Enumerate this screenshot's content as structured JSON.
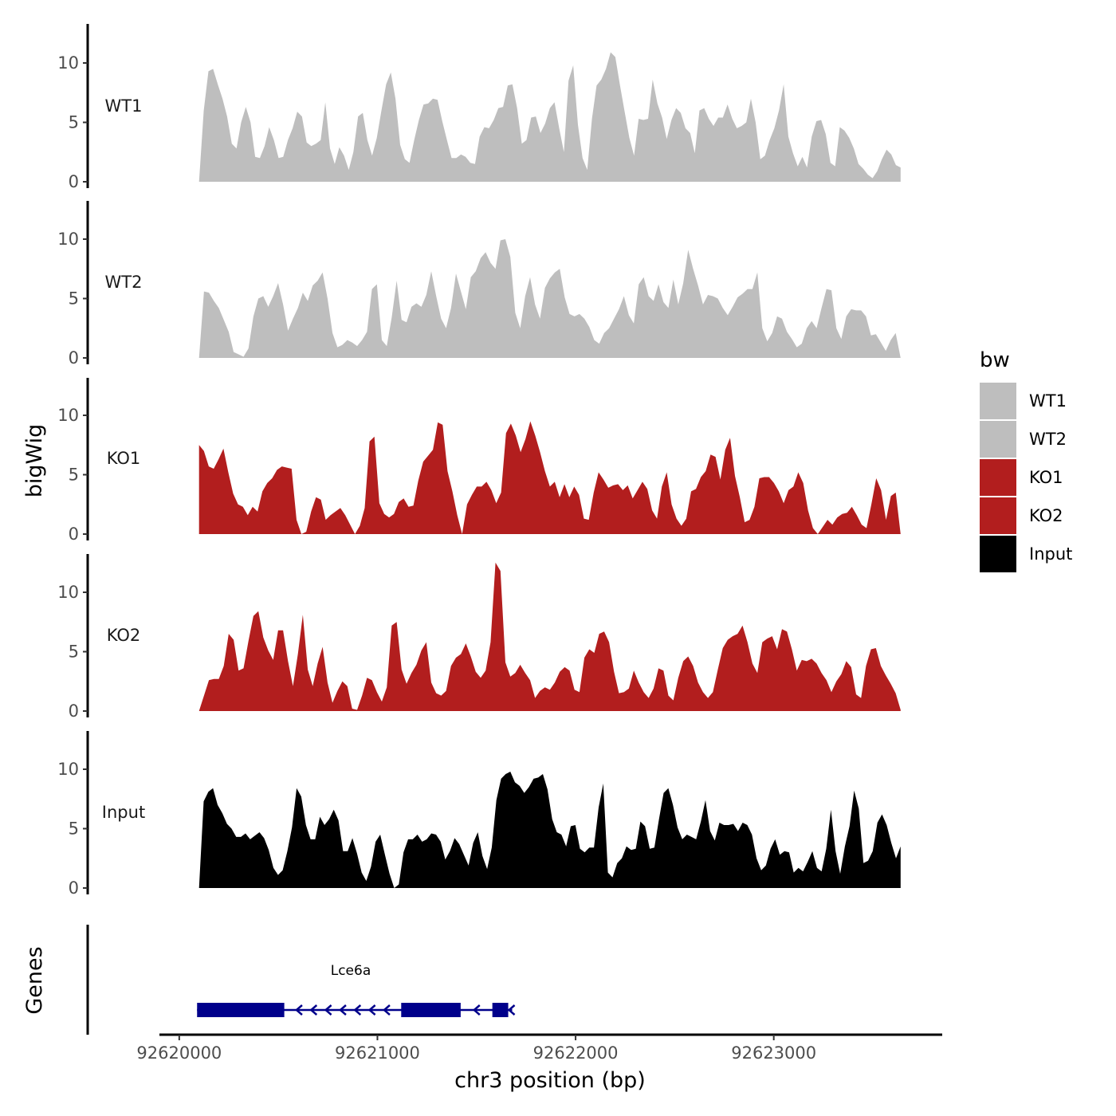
{
  "chart_data": {
    "type": "area",
    "ylabel": "bigWig",
    "xlabel": "chr3 position (bp)",
    "xlim": [
      92619900,
      92623850
    ],
    "ylim": [
      0,
      13
    ],
    "y_ticks": [
      "0",
      "5",
      "10"
    ],
    "x_ticks": [
      {
        "value": 92620000,
        "label": "92620000"
      },
      {
        "value": 92621000,
        "label": "92621000"
      },
      {
        "value": 92622000,
        "label": "92622000"
      },
      {
        "value": 92623000,
        "label": "92623000"
      }
    ],
    "colors": {
      "WT": "#bebebe",
      "KO": "#b21e1e",
      "Input": "#000000",
      "gene": "#00008b"
    },
    "series": [
      {
        "name": "WT1",
        "color": "#bebebe",
        "x_start": 92620100,
        "x_end": 92623640,
        "values": [
          0,
          6,
          9.3,
          9.5,
          8.2,
          7,
          5.5,
          3.2,
          2.8,
          5,
          6.3,
          5,
          2.1,
          2,
          3,
          4.6,
          3.5,
          2,
          2.1,
          3.5,
          4.5,
          5.9,
          5.5,
          3.3,
          3,
          3.2,
          3.5,
          6.7,
          2.8,
          1.5,
          2.9,
          2.2,
          1,
          2.5,
          5.5,
          5.8,
          3.5,
          2.2,
          3.7,
          6,
          8.2,
          9.2,
          7,
          3.1,
          1.9,
          1.6,
          3.5,
          5.2,
          6.5,
          6.6,
          7,
          6.9,
          5.1,
          3.5,
          2,
          2,
          2.3,
          2.1,
          1.6,
          1.5,
          3.8,
          4.6,
          4.5,
          5.2,
          6.2,
          6.3,
          8.1,
          8.2,
          6.2,
          3.2,
          3.5,
          5.4,
          5.5,
          4.1,
          4.9,
          6.2,
          6.7,
          4.5,
          2.5,
          8.5,
          9.8,
          4.8,
          2,
          1,
          5.3,
          8.1,
          8.6,
          9.5,
          10.9,
          10.5,
          8.1,
          5.9,
          3.7,
          2.2,
          5.3,
          5.2,
          5.3,
          8.6,
          6.6,
          5.4,
          3.6,
          5.2,
          6.2,
          5.8,
          4.5,
          4.1,
          2.4,
          6,
          6.2,
          5.3,
          4.7,
          5.4,
          5.4,
          6.5,
          5.3,
          4.5,
          4.7,
          5,
          7,
          5,
          1.9,
          2.2,
          3.5,
          4.5,
          6,
          8.2,
          3.8,
          2.4,
          1.3,
          2.1,
          1.2,
          3.8,
          5.1,
          5.2,
          4,
          1.6,
          1.3,
          4.6,
          4.3,
          3.7,
          2.8,
          1.5,
          1.1,
          0.6,
          0.3,
          0.9,
          1.9,
          2.7,
          2.3,
          1.4,
          1.2
        ]
      },
      {
        "name": "WT2",
        "color": "#bebebe",
        "x_start": 92620100,
        "x_end": 92623640,
        "values": [
          0,
          5.6,
          5.5,
          4.8,
          4.2,
          3.2,
          2.2,
          0.5,
          0.3,
          0.1,
          0.8,
          3.5,
          5,
          5.2,
          4.3,
          5.2,
          6.3,
          4.5,
          2.3,
          3.3,
          4.2,
          5.5,
          4.8,
          6.1,
          6.5,
          7.2,
          5,
          2.1,
          0.9,
          1.1,
          1.5,
          1.3,
          1,
          1.5,
          2.2,
          5.8,
          6.2,
          1.5,
          1,
          3.4,
          6.5,
          3.2,
          3,
          4.3,
          4.6,
          4.3,
          5.3,
          7.3,
          5.2,
          3.3,
          2.5,
          4.2,
          7.1,
          5.6,
          4.1,
          6.8,
          7.3,
          8.4,
          8.9,
          8,
          7.5,
          9.9,
          10,
          8.5,
          3.8,
          2.5,
          5.2,
          6.8,
          4.5,
          3.3,
          5.9,
          6.7,
          7.2,
          7.5,
          5.1,
          3.7,
          3.5,
          3.7,
          3.3,
          2.6,
          1.5,
          1.2,
          2.1,
          2.5,
          3.3,
          4.1,
          5.2,
          3.6,
          2.9,
          6.2,
          6.8,
          5.2,
          4.8,
          6.2,
          4.7,
          4.2,
          6.6,
          4.5,
          6.3,
          9.1,
          7.5,
          6.1,
          4.5,
          5.3,
          5.2,
          5,
          4.2,
          3.6,
          4.3,
          5.1,
          5.4,
          5.8,
          5.8,
          7.2,
          2.5,
          1.4,
          2.1,
          3.5,
          3.3,
          2.2,
          1.6,
          0.9,
          1.2,
          2.5,
          3.1,
          2.5,
          4.2,
          5.8,
          5.7,
          2.5,
          1.6,
          3.5,
          4.1,
          4,
          4,
          3.5,
          1.9,
          2,
          1.3,
          0.6,
          1.5,
          2.1,
          0
        ]
      },
      {
        "name": "KO1",
        "color": "#b21e1e",
        "x_start": 92620100,
        "x_end": 92623640,
        "values": [
          7.5,
          7,
          5.7,
          5.5,
          6.3,
          7.2,
          5.2,
          3.4,
          2.5,
          2.3,
          1.6,
          2.3,
          1.9,
          3.6,
          4.3,
          4.7,
          5.4,
          5.7,
          5.6,
          5.5,
          1.2,
          0,
          0.2,
          1.9,
          3.1,
          2.9,
          1.2,
          1.6,
          1.9,
          2.2,
          1.6,
          0.8,
          0,
          0.7,
          2.2,
          7.8,
          8.2,
          2.6,
          1.7,
          1.4,
          1.7,
          2.7,
          3,
          2.3,
          2.4,
          4.5,
          6.1,
          6.6,
          7.1,
          9.4,
          9.2,
          5.3,
          3.6,
          1.6,
          0,
          2.5,
          3.3,
          4,
          4,
          4.4,
          3.7,
          2.6,
          3.5,
          8.5,
          9.3,
          8.3,
          6.9,
          8,
          9.5,
          8.3,
          6.9,
          5.3,
          4,
          4.4,
          3.1,
          4.2,
          3.1,
          4,
          3.3,
          1.3,
          1.2,
          3.5,
          5.2,
          4.6,
          3.9,
          4.1,
          4.2,
          3.7,
          4.1,
          3,
          3.7,
          4.4,
          3.8,
          2,
          1.3,
          4,
          5.2,
          2.5,
          1.3,
          0.7,
          1.3,
          3.6,
          3.8,
          4.8,
          5.3,
          6.7,
          6.5,
          4.6,
          7.1,
          8.1,
          4.9,
          3.1,
          1,
          1.2,
          2.3,
          4.7,
          4.8,
          4.8,
          4.3,
          3.6,
          2.6,
          3.7,
          4,
          5.2,
          4.3,
          2,
          0.5,
          0,
          0.6,
          1.2,
          0.8,
          1.4,
          1.7,
          1.8,
          2.3,
          1.6,
          0.8,
          0.5,
          2.5,
          4.7,
          3.7,
          1.2,
          3.2,
          3.5,
          0
        ]
      },
      {
        "name": "KO2",
        "color": "#b21e1e",
        "x_start": 92620100,
        "x_end": 92623640,
        "values": [
          0,
          1.3,
          2.6,
          2.7,
          2.7,
          3.8,
          6.5,
          6,
          3.4,
          3.6,
          5.9,
          8,
          8.4,
          6.2,
          5.1,
          4.3,
          6.8,
          6.8,
          4.2,
          2.1,
          4.8,
          8.1,
          3.5,
          2.1,
          4,
          5.4,
          2.4,
          0.7,
          1.7,
          2.5,
          2.1,
          0.2,
          0.1,
          1.3,
          2.8,
          2.6,
          1.6,
          0.8,
          2,
          7.2,
          7.5,
          3.5,
          2.3,
          3.2,
          3.9,
          5.1,
          5.8,
          2.4,
          1.5,
          1.3,
          1.7,
          3.8,
          4.5,
          4.8,
          5.7,
          4.6,
          3.3,
          2.8,
          3.4,
          5.8,
          12.5,
          11.8,
          4.1,
          2.9,
          3.2,
          3.9,
          3.2,
          2.6,
          1.1,
          1.7,
          2,
          1.8,
          2.4,
          3.3,
          3.7,
          3.4,
          1.8,
          1.6,
          4.5,
          5.2,
          4.9,
          6.5,
          6.7,
          5.8,
          3.3,
          1.5,
          1.6,
          1.9,
          3.4,
          2.4,
          1.6,
          1.1,
          1.9,
          3.6,
          3.4,
          1.3,
          0.9,
          2.8,
          4.2,
          4.6,
          3.8,
          2.4,
          1.6,
          1.1,
          1.6,
          3.5,
          5.3,
          6,
          6.3,
          6.5,
          7.2,
          5.8,
          4,
          3.2,
          5.8,
          6.1,
          6.3,
          5.2,
          6.9,
          6.7,
          5.2,
          3.4,
          4.3,
          4.2,
          4.4,
          4,
          3.2,
          2.6,
          1.6,
          2.5,
          3.1,
          4.2,
          3.7,
          1.4,
          1.1,
          3.8,
          5.2,
          5.3,
          3.8,
          3,
          2.3,
          1.5,
          0.1
        ]
      },
      {
        "name": "Input",
        "color": "#000000",
        "x_start": 92620100,
        "x_end": 92623640,
        "values": [
          0,
          7.3,
          8.1,
          8.4,
          7,
          6.3,
          5.4,
          5,
          4.3,
          4.3,
          4.6,
          4.1,
          4.4,
          4.7,
          4.2,
          3.2,
          1.7,
          1.1,
          1.5,
          3.1,
          5.1,
          8.4,
          7.7,
          5.3,
          4.1,
          4.1,
          6,
          5.3,
          5.8,
          6.6,
          5.7,
          3.1,
          3.1,
          4.2,
          2.9,
          1.3,
          0.6,
          1.8,
          3.9,
          4.5,
          2.8,
          1.2,
          0,
          0.3,
          3,
          4.1,
          4.1,
          4.5,
          3.9,
          4.1,
          4.6,
          4.5,
          3.9,
          2.4,
          3.1,
          4.2,
          3.7,
          2.8,
          1.9,
          3.8,
          4.7,
          2.7,
          1.6,
          3.4,
          7.4,
          9.2,
          9.6,
          9.8,
          8.9,
          8.6,
          8,
          8.5,
          9.2,
          9.3,
          9.6,
          8.3,
          5.8,
          4.7,
          4.5,
          3.5,
          5.2,
          5.3,
          3.3,
          3,
          3.4,
          3.4,
          6.8,
          8.8,
          1.3,
          0.9,
          2.1,
          2.5,
          3.5,
          3.2,
          3.3,
          5.6,
          5.2,
          3.3,
          3.4,
          5.8,
          8,
          8.4,
          7,
          5.1,
          4.1,
          4.5,
          4.3,
          4.1,
          5.6,
          7.4,
          4.8,
          4,
          5.5,
          5.3,
          5.3,
          5.4,
          4.8,
          5.5,
          5.3,
          4.5,
          2.5,
          1.5,
          1.9,
          3.3,
          4.1,
          2.8,
          3.1,
          3,
          1.3,
          1.7,
          1.4,
          2.2,
          3.1,
          1.7,
          1.4,
          3.3,
          6.6,
          3.1,
          1.2,
          3.5,
          5.2,
          8.2,
          6.7,
          2.1,
          2.3,
          3.1,
          5.5,
          6.2,
          5.3,
          3.8,
          2.5,
          3.5
        ]
      }
    ],
    "genes": [
      {
        "name": "Lce6a",
        "strand": "-",
        "start": 92620090,
        "end": 92621680,
        "exons": [
          [
            92620090,
            92620530
          ],
          [
            92621120,
            92621420
          ],
          [
            92621580,
            92621660
          ]
        ]
      }
    ]
  },
  "panel_labels": {
    "genes_title": "Genes"
  },
  "legend": {
    "title": "bw",
    "items": [
      {
        "label": "WT1",
        "color": "#bebebe"
      },
      {
        "label": "WT2",
        "color": "#bebebe"
      },
      {
        "label": "KO1",
        "color": "#b21e1e"
      },
      {
        "label": "KO2",
        "color": "#b21e1e"
      },
      {
        "label": "Input",
        "color": "#000000"
      }
    ]
  }
}
